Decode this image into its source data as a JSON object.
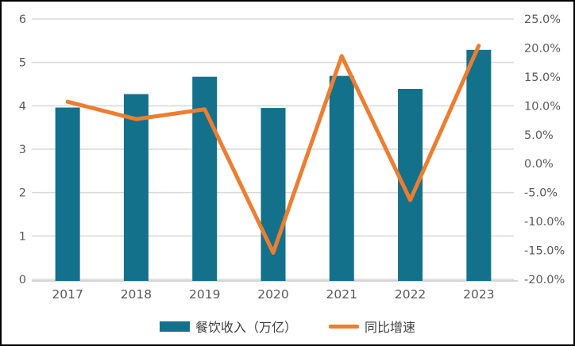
{
  "frame": {
    "background": "#ffffff",
    "border_color": "#000000"
  },
  "chart_data": {
    "type": "combo-bar-line",
    "title": "",
    "categories": [
      "2017",
      "2018",
      "2019",
      "2020",
      "2021",
      "2022",
      "2023"
    ],
    "series": [
      {
        "name": "餐饮收入（万亿）",
        "type": "bar",
        "axis": "left",
        "color": "#13718C",
        "values": [
          3.96,
          4.27,
          4.67,
          3.95,
          4.69,
          4.39,
          5.29
        ]
      },
      {
        "name": "同比增速",
        "type": "line",
        "axis": "right",
        "color": "#ED7D31",
        "unit": "%",
        "values": [
          10.7,
          7.7,
          9.4,
          -15.4,
          18.6,
          -6.3,
          20.4
        ]
      }
    ],
    "left_axis": {
      "min": 0,
      "max": 6,
      "step": 1,
      "tick_labels": [
        "0",
        "1",
        "2",
        "3",
        "4",
        "5",
        "6"
      ]
    },
    "right_axis": {
      "min": -20,
      "max": 25,
      "step": 5,
      "tick_labels": [
        "-20.0%",
        "-15.0%",
        "-10.0%",
        "-5.0%",
        "0.0%",
        "5.0%",
        "10.0%",
        "15.0%",
        "20.0%",
        "25.0%"
      ]
    },
    "grid": {
      "show_horizontal": true,
      "color": "#D9D9D9"
    },
    "axis_line_color": "#C9C9C9",
    "axis_text_color": "#595959",
    "legend_text_color": "#404040",
    "legend_position": "bottom"
  }
}
